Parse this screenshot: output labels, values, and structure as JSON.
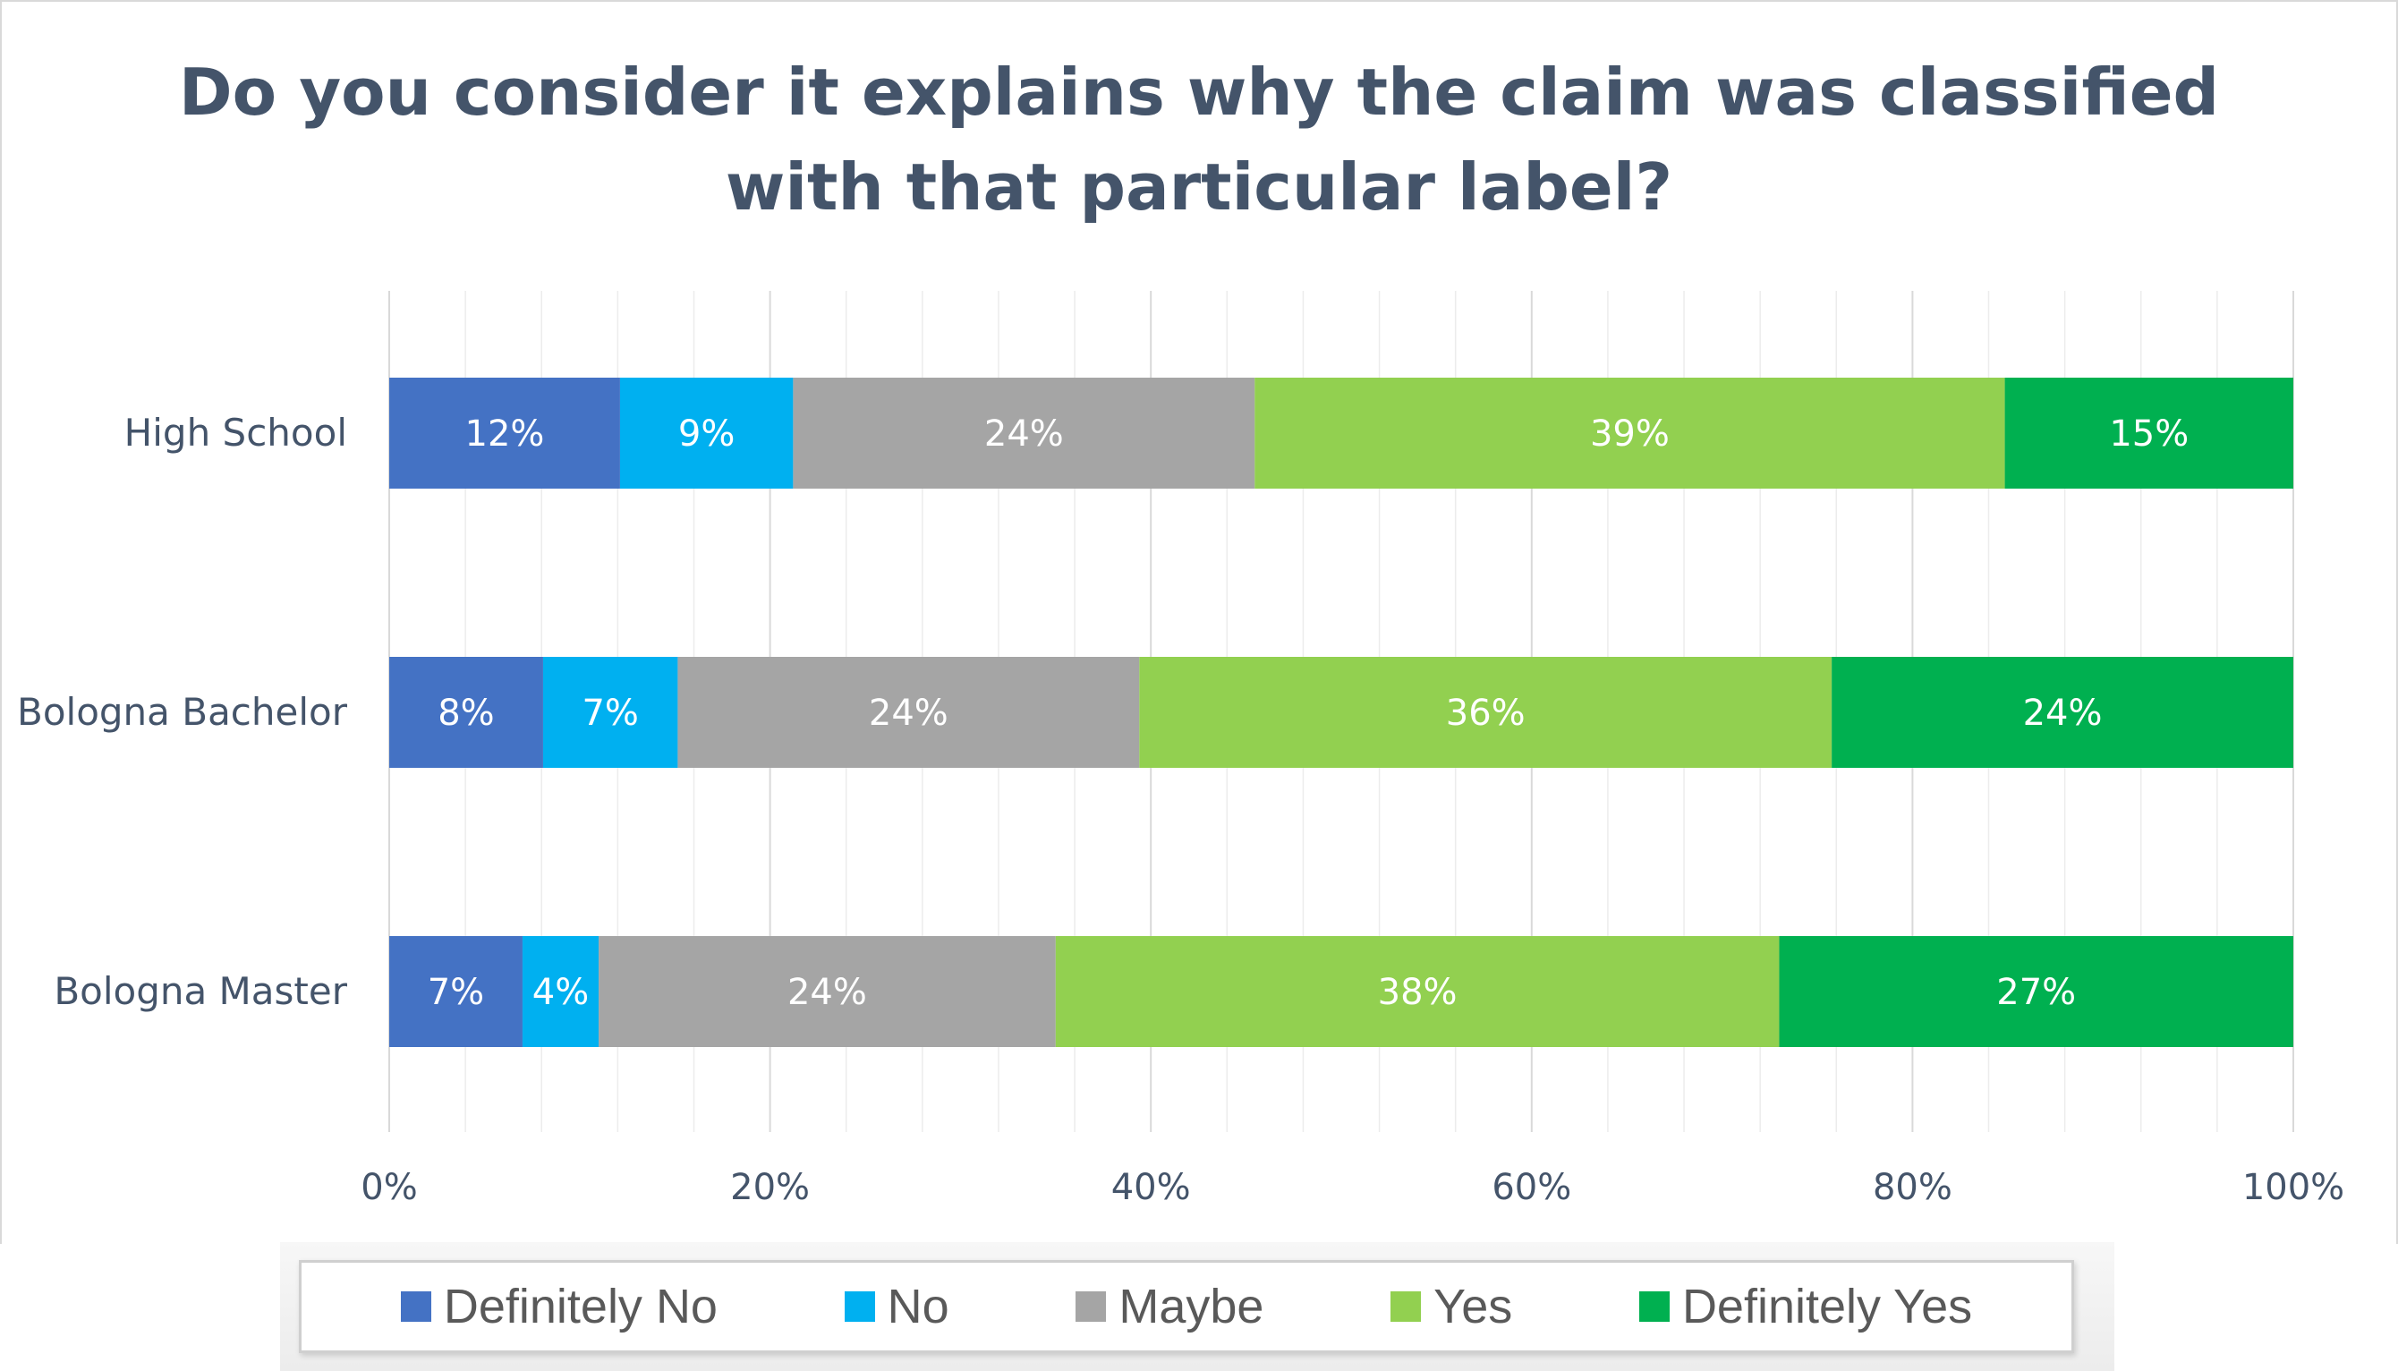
{
  "title_lines": [
    "Do you consider it explains why the claim was classified",
    "with that particular label?"
  ],
  "chart_data": {
    "type": "bar",
    "orientation": "horizontal",
    "stacked": true,
    "percent_stacked": true,
    "title": "Do you consider it explains why the claim was classified with that particular label?",
    "categories": [
      "High School",
      "Bologna Bachelor",
      "Bologna Master"
    ],
    "series": [
      {
        "name": "Definitely No",
        "color": "#4472c4",
        "values": [
          12,
          8,
          7
        ],
        "labels": [
          "12%",
          "8%",
          "7%"
        ]
      },
      {
        "name": "No",
        "color": "#00b0f0",
        "values": [
          9,
          7,
          4
        ],
        "labels": [
          "9%",
          "7%",
          "4%"
        ]
      },
      {
        "name": "Maybe",
        "color": "#a5a5a5",
        "values": [
          24,
          24,
          24
        ],
        "labels": [
          "24%",
          "24%",
          "24%"
        ]
      },
      {
        "name": "Yes",
        "color": "#92d050",
        "values": [
          39,
          36,
          38
        ],
        "labels": [
          "39%",
          "36%",
          "38%"
        ]
      },
      {
        "name": "Definitely Yes",
        "color": "#00b050",
        "values": [
          15,
          24,
          27
        ],
        "labels": [
          "15%",
          "24%",
          "27%"
        ]
      }
    ],
    "xlim": [
      0,
      100
    ],
    "x_ticks": [
      "0%",
      "20%",
      "40%",
      "60%",
      "80%",
      "100%"
    ],
    "grid": "vertical major and minor",
    "legend_position": "bottom"
  }
}
